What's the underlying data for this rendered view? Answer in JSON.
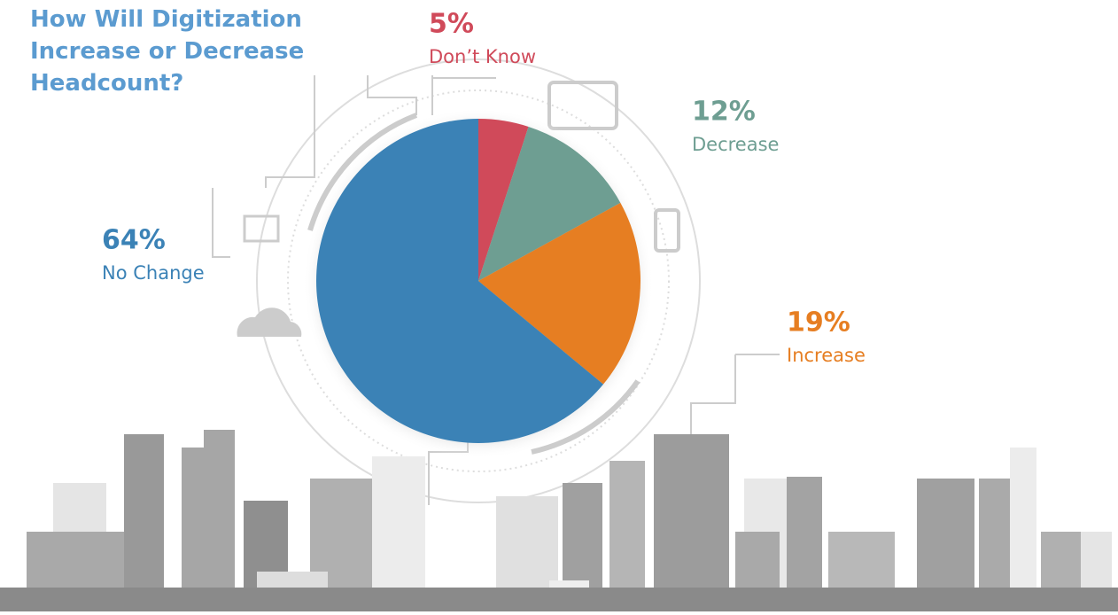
{
  "chart_data": {
    "type": "pie",
    "title": "How Will Digitization Increase or Decrease Headcount?",
    "categories": [
      "Don’t Know",
      "Decrease",
      "Increase",
      "No Change"
    ],
    "values": [
      5,
      12,
      19,
      64
    ],
    "value_labels": [
      "5%",
      "12%",
      "19%",
      "64%"
    ],
    "colors": [
      "#d04a5a",
      "#6e9e92",
      "#e67e22",
      "#3b82b6"
    ]
  }
}
